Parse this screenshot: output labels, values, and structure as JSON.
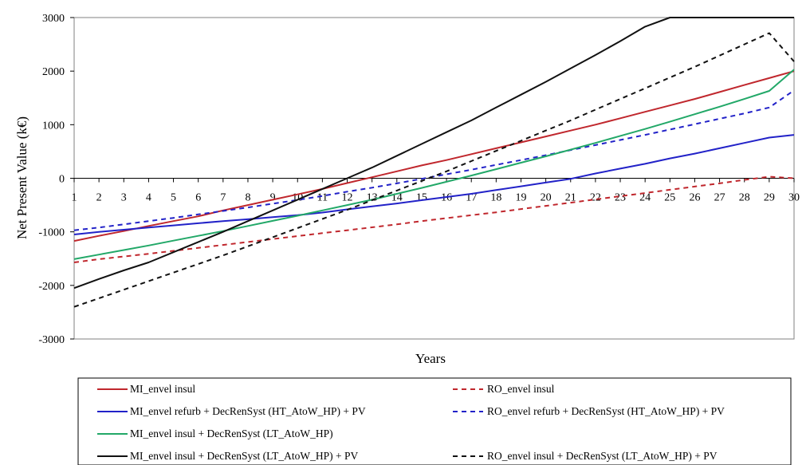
{
  "chart_data": {
    "type": "line",
    "xlabel": "Years",
    "ylabel": "Net Present Value (k€)",
    "xlim": [
      1,
      30
    ],
    "ylim": [
      -3000,
      3000
    ],
    "x": [
      1,
      2,
      3,
      4,
      5,
      6,
      7,
      8,
      9,
      10,
      11,
      12,
      13,
      14,
      15,
      16,
      17,
      18,
      19,
      20,
      21,
      22,
      23,
      24,
      25,
      26,
      27,
      28,
      29,
      30
    ],
    "x_tick_labels": [
      "1",
      "2",
      "3",
      "4",
      "5",
      "6",
      "7",
      "8",
      "9",
      "10",
      "11",
      "12",
      "13",
      "14",
      "15",
      "16",
      "17",
      "18",
      "19",
      "20",
      "21",
      "22",
      "23",
      "24",
      "25",
      "26",
      "27",
      "28",
      "29",
      "30"
    ],
    "y_ticks": [
      -3000,
      -2000,
      -1000,
      0,
      1000,
      2000,
      3000
    ],
    "y_tick_labels": [
      "-3000",
      "-2000",
      "-1000",
      "0",
      "1000",
      "2000",
      "3000"
    ],
    "grid": false,
    "legend_position": "bottom",
    "series": [
      {
        "name": "MI_envel insul",
        "color": "#c0272d",
        "dash": "solid",
        "values": [
          -1170,
          -1075,
          -985,
          -890,
          -800,
          -710,
          -600,
          -500,
          -400,
          -300,
          -200,
          -90,
          20,
          130,
          240,
          340,
          450,
          560,
          670,
          780,
          890,
          1000,
          1120,
          1240,
          1360,
          1480,
          1610,
          1740,
          1870,
          2000
        ]
      },
      {
        "name": "RO_envel insul",
        "color": "#c0272d",
        "dash": "dashed",
        "values": [
          -1570,
          -1510,
          -1460,
          -1410,
          -1355,
          -1300,
          -1245,
          -1190,
          -1135,
          -1080,
          -1025,
          -970,
          -915,
          -860,
          -800,
          -745,
          -690,
          -635,
          -575,
          -515,
          -455,
          -395,
          -335,
          -275,
          -215,
          -155,
          -95,
          -30,
          30,
          0
        ]
      },
      {
        "name": "MI_envel refurb + DecRenSyst (HT_AtoW_HP) + PV",
        "color": "#2222c8",
        "dash": "solid",
        "values": [
          -1050,
          -1000,
          -960,
          -920,
          -880,
          -840,
          -800,
          -765,
          -725,
          -690,
          -640,
          -580,
          -525,
          -470,
          -410,
          -350,
          -290,
          -220,
          -150,
          -80,
          -10,
          90,
          180,
          270,
          370,
          460,
          560,
          660,
          760,
          810
        ]
      },
      {
        "name": "RO_envel refurb + DecRenSyst (HT_AtoW_HP) + PV",
        "color": "#2222c8",
        "dash": "dashed",
        "values": [
          -970,
          -920,
          -860,
          -800,
          -740,
          -675,
          -610,
          -545,
          -475,
          -405,
          -330,
          -250,
          -175,
          -95,
          -10,
          75,
          160,
          250,
          340,
          430,
          525,
          620,
          715,
          810,
          910,
          1010,
          1110,
          1210,
          1320,
          1640
        ]
      },
      {
        "name": "MI_envel insul + DecRenSyst (LT_AtoW_HP)",
        "color": "#22a868",
        "dash": "solid",
        "values": [
          -1510,
          -1425,
          -1340,
          -1255,
          -1165,
          -1075,
          -985,
          -890,
          -795,
          -700,
          -600,
          -500,
          -400,
          -290,
          -180,
          -65,
          50,
          170,
          290,
          410,
          535,
          660,
          790,
          920,
          1055,
          1195,
          1335,
          1480,
          1630,
          2030
        ]
      },
      {
        "name": "MI_envel insul + DecRenSyst (LT_AtoW_HP) + PV",
        "color": "#111111",
        "dash": "solid",
        "values": [
          -2050,
          -1880,
          -1720,
          -1570,
          -1380,
          -1190,
          -1000,
          -800,
          -600,
          -400,
          -200,
          0,
          200,
          420,
          640,
          860,
          1080,
          1320,
          1560,
          1800,
          2050,
          2300,
          2560,
          2830,
          3000,
          3000,
          3000,
          3000,
          3000,
          3000
        ]
      },
      {
        "name": "RO_envel insul + DecRenSyst (LT_AtoW_HP) + PV",
        "color": "#111111",
        "dash": "dashed",
        "values": [
          -2400,
          -2240,
          -2080,
          -1920,
          -1760,
          -1600,
          -1440,
          -1270,
          -1100,
          -930,
          -760,
          -590,
          -410,
          -230,
          -50,
          130,
          320,
          510,
          700,
          890,
          1080,
          1280,
          1480,
          1680,
          1880,
          2080,
          2290,
          2500,
          2710,
          2180
        ]
      }
    ]
  }
}
